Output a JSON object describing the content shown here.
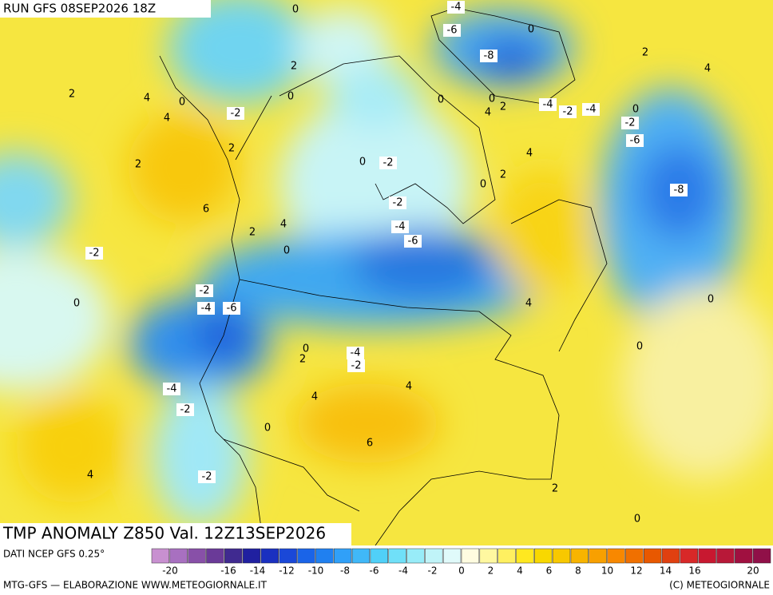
{
  "header": {
    "run": "RUN GFS 08SEP2026 18Z"
  },
  "map": {
    "title": "TMP ANOMALY Z850 Val. 12Z13SEP2026",
    "contour_labels": [
      0,
      -4,
      -6,
      0,
      -8,
      2,
      4,
      2,
      0,
      2,
      4,
      0,
      4,
      -2,
      0,
      0,
      2,
      4,
      -4,
      -2,
      -4,
      0,
      -2,
      -6,
      2,
      2,
      0,
      -2,
      4,
      2,
      0,
      -8,
      -2,
      6,
      4,
      -4,
      2,
      -6,
      0,
      -2,
      -2,
      0,
      -4,
      -6,
      4,
      0,
      0,
      2,
      -4,
      -2,
      0,
      -4,
      4,
      4,
      -2,
      0,
      6,
      4,
      -2,
      2,
      0
    ]
  },
  "footer": {
    "source": "DATI NCEP GFS 0.25°",
    "credit_left": "MTG-GFS — ELABORAZIONE WWW.METEOGIORNALE.IT",
    "credit_right": "(C) METEOGIORNALE"
  },
  "colorbar": {
    "ticks": [
      -20,
      -16,
      -14,
      -12,
      -10,
      -8,
      -6,
      -4,
      -2,
      0,
      2,
      4,
      6,
      8,
      10,
      12,
      14,
      16,
      20
    ],
    "colors": [
      "#c890d0",
      "#a870c0",
      "#8850a8",
      "#6a3a98",
      "#402a90",
      "#2020a0",
      "#1a30c0",
      "#1a48d8",
      "#1a64e8",
      "#2080f0",
      "#30a0f8",
      "#40b8f8",
      "#50d0f8",
      "#70e0f8",
      "#98ecf8",
      "#c0f4f8",
      "#e0fafa",
      "#fffce0",
      "#fff8a0",
      "#fff060",
      "#ffe820",
      "#f8d800",
      "#f8c800",
      "#f8b400",
      "#f8a000",
      "#f88800",
      "#f07000",
      "#e85800",
      "#e04010",
      "#d82828",
      "#c81830",
      "#b81838",
      "#a01040",
      "#901048"
    ]
  }
}
